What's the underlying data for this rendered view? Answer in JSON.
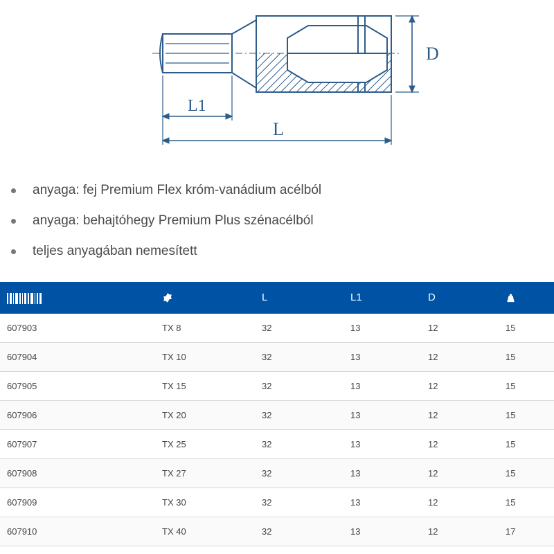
{
  "diagram": {
    "labels": {
      "L": "L",
      "L1": "L1",
      "D": "D"
    },
    "stroke": "#2d5c8a",
    "stroke_width": 2,
    "fill": "#ffffff",
    "hatch": "#2d5c8a",
    "font_family": "Georgia, serif",
    "font_size": 26
  },
  "bullets": [
    "anyaga: fej Premium Flex króm-vanádium acélból",
    "anyaga: behajtóhegy Premium Plus szénacélból",
    "teljes anyagában nemesített"
  ],
  "table": {
    "header_bg": "#0052a5",
    "header_fg": "#ffffff",
    "row_border": "#d7d7d7",
    "columns": [
      {
        "key": "code",
        "type": "barcode",
        "width": "28%"
      },
      {
        "key": "size",
        "type": "torx",
        "width": "18%"
      },
      {
        "key": "L",
        "type": "text",
        "label": "L",
        "width": "16%"
      },
      {
        "key": "L1",
        "type": "text",
        "label": "L1",
        "width": "14%"
      },
      {
        "key": "D",
        "type": "text",
        "label": "D",
        "width": "14%"
      },
      {
        "key": "weight",
        "type": "weight",
        "width": "10%"
      }
    ],
    "rows": [
      {
        "code": "607903",
        "size": "TX 8",
        "L": "32",
        "L1": "13",
        "D": "12",
        "weight": "15"
      },
      {
        "code": "607904",
        "size": "TX 10",
        "L": "32",
        "L1": "13",
        "D": "12",
        "weight": "15"
      },
      {
        "code": "607905",
        "size": "TX 15",
        "L": "32",
        "L1": "13",
        "D": "12",
        "weight": "15"
      },
      {
        "code": "607906",
        "size": "TX 20",
        "L": "32",
        "L1": "13",
        "D": "12",
        "weight": "15"
      },
      {
        "code": "607907",
        "size": "TX 25",
        "L": "32",
        "L1": "13",
        "D": "12",
        "weight": "15"
      },
      {
        "code": "607908",
        "size": "TX 27",
        "L": "32",
        "L1": "13",
        "D": "12",
        "weight": "15"
      },
      {
        "code": "607909",
        "size": "TX 30",
        "L": "32",
        "L1": "13",
        "D": "12",
        "weight": "15"
      },
      {
        "code": "607910",
        "size": "TX 40",
        "L": "32",
        "L1": "13",
        "D": "12",
        "weight": "17"
      }
    ]
  }
}
